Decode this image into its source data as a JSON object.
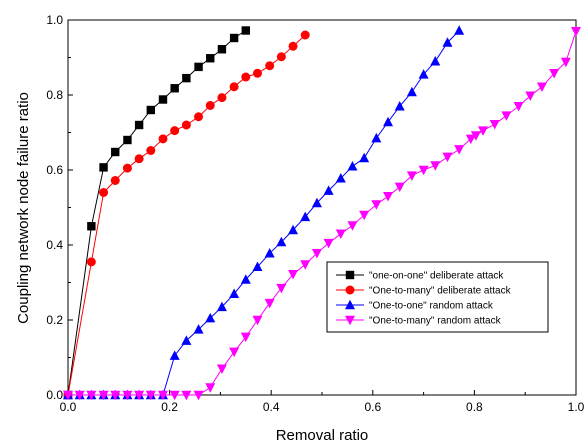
{
  "chart_data": {
    "type": "line",
    "title": "",
    "xlabel": "Removal ratio",
    "ylabel": "Coupling network node failure ratio",
    "xlim": [
      0,
      1.0
    ],
    "ylim": [
      0,
      1.0
    ],
    "xticks": [
      "0.0",
      "0.2",
      "0.4",
      "0.6",
      "0.8",
      "1.0"
    ],
    "yticks": [
      "0.0",
      "0.2",
      "0.4",
      "0.6",
      "0.8",
      "1.0"
    ],
    "grid": false,
    "legend_position": "lower-right",
    "series": [
      {
        "name": "\"one-on-one\" deliberate attack",
        "color": "#000000",
        "marker": "square",
        "points": [
          [
            0.0,
            0.0
          ],
          [
            0.046,
            0.45
          ],
          [
            0.07,
            0.607
          ],
          [
            0.093,
            0.648
          ],
          [
            0.117,
            0.68
          ],
          [
            0.14,
            0.72
          ],
          [
            0.163,
            0.76
          ],
          [
            0.187,
            0.788
          ],
          [
            0.21,
            0.818
          ],
          [
            0.233,
            0.845
          ],
          [
            0.257,
            0.875
          ],
          [
            0.28,
            0.898
          ],
          [
            0.303,
            0.922
          ],
          [
            0.327,
            0.952
          ],
          [
            0.35,
            0.972
          ]
        ]
      },
      {
        "name": "\"One-to-many\" deliberate attack",
        "color": "#ff0000",
        "marker": "circle",
        "points": [
          [
            0.0,
            0.0
          ],
          [
            0.046,
            0.355
          ],
          [
            0.07,
            0.54
          ],
          [
            0.093,
            0.572
          ],
          [
            0.117,
            0.605
          ],
          [
            0.14,
            0.63
          ],
          [
            0.163,
            0.652
          ],
          [
            0.187,
            0.683
          ],
          [
            0.21,
            0.705
          ],
          [
            0.233,
            0.72
          ],
          [
            0.257,
            0.742
          ],
          [
            0.28,
            0.772
          ],
          [
            0.303,
            0.793
          ],
          [
            0.327,
            0.822
          ],
          [
            0.35,
            0.848
          ],
          [
            0.373,
            0.858
          ],
          [
            0.397,
            0.878
          ],
          [
            0.42,
            0.902
          ],
          [
            0.443,
            0.93
          ],
          [
            0.467,
            0.96
          ]
        ]
      },
      {
        "name": "\"One-to-one\" random attack",
        "color": "#0000ff",
        "marker": "triangle-up",
        "points": [
          [
            0.0,
            0.0
          ],
          [
            0.023,
            0.0
          ],
          [
            0.046,
            0.0
          ],
          [
            0.07,
            0.0
          ],
          [
            0.093,
            0.0
          ],
          [
            0.117,
            0.0
          ],
          [
            0.14,
            0.0
          ],
          [
            0.163,
            0.0
          ],
          [
            0.187,
            0.0
          ],
          [
            0.21,
            0.105
          ],
          [
            0.233,
            0.145
          ],
          [
            0.257,
            0.175
          ],
          [
            0.28,
            0.205
          ],
          [
            0.303,
            0.235
          ],
          [
            0.327,
            0.27
          ],
          [
            0.35,
            0.308
          ],
          [
            0.373,
            0.342
          ],
          [
            0.397,
            0.378
          ],
          [
            0.42,
            0.408
          ],
          [
            0.443,
            0.44
          ],
          [
            0.467,
            0.475
          ],
          [
            0.49,
            0.512
          ],
          [
            0.513,
            0.545
          ],
          [
            0.537,
            0.578
          ],
          [
            0.56,
            0.61
          ],
          [
            0.583,
            0.632
          ],
          [
            0.607,
            0.685
          ],
          [
            0.63,
            0.728
          ],
          [
            0.653,
            0.77
          ],
          [
            0.677,
            0.808
          ],
          [
            0.7,
            0.855
          ],
          [
            0.723,
            0.89
          ],
          [
            0.747,
            0.94
          ],
          [
            0.77,
            0.972
          ]
        ]
      },
      {
        "name": "\"One-to-many\" random attack",
        "color": "#ff00ff",
        "marker": "triangle-down",
        "points": [
          [
            0.0,
            0.0
          ],
          [
            0.023,
            0.0
          ],
          [
            0.046,
            0.0
          ],
          [
            0.07,
            0.0
          ],
          [
            0.093,
            0.0
          ],
          [
            0.117,
            0.0
          ],
          [
            0.14,
            0.0
          ],
          [
            0.163,
            0.0
          ],
          [
            0.187,
            0.0
          ],
          [
            0.21,
            0.0
          ],
          [
            0.233,
            0.0
          ],
          [
            0.257,
            0.0
          ],
          [
            0.28,
            0.02
          ],
          [
            0.303,
            0.07
          ],
          [
            0.327,
            0.115
          ],
          [
            0.35,
            0.155
          ],
          [
            0.373,
            0.2
          ],
          [
            0.397,
            0.245
          ],
          [
            0.42,
            0.285
          ],
          [
            0.443,
            0.322
          ],
          [
            0.467,
            0.348
          ],
          [
            0.49,
            0.378
          ],
          [
            0.513,
            0.405
          ],
          [
            0.537,
            0.43
          ],
          [
            0.56,
            0.452
          ],
          [
            0.583,
            0.48
          ],
          [
            0.607,
            0.508
          ],
          [
            0.63,
            0.53
          ],
          [
            0.653,
            0.555
          ],
          [
            0.677,
            0.585
          ],
          [
            0.7,
            0.6
          ],
          [
            0.723,
            0.612
          ],
          [
            0.747,
            0.635
          ],
          [
            0.77,
            0.655
          ],
          [
            0.793,
            0.683
          ],
          [
            0.803,
            0.692
          ],
          [
            0.817,
            0.705
          ],
          [
            0.84,
            0.722
          ],
          [
            0.863,
            0.745
          ],
          [
            0.887,
            0.77
          ],
          [
            0.91,
            0.798
          ],
          [
            0.933,
            0.822
          ],
          [
            0.957,
            0.858
          ],
          [
            0.98,
            0.888
          ],
          [
            1.0,
            0.97
          ]
        ]
      }
    ]
  }
}
